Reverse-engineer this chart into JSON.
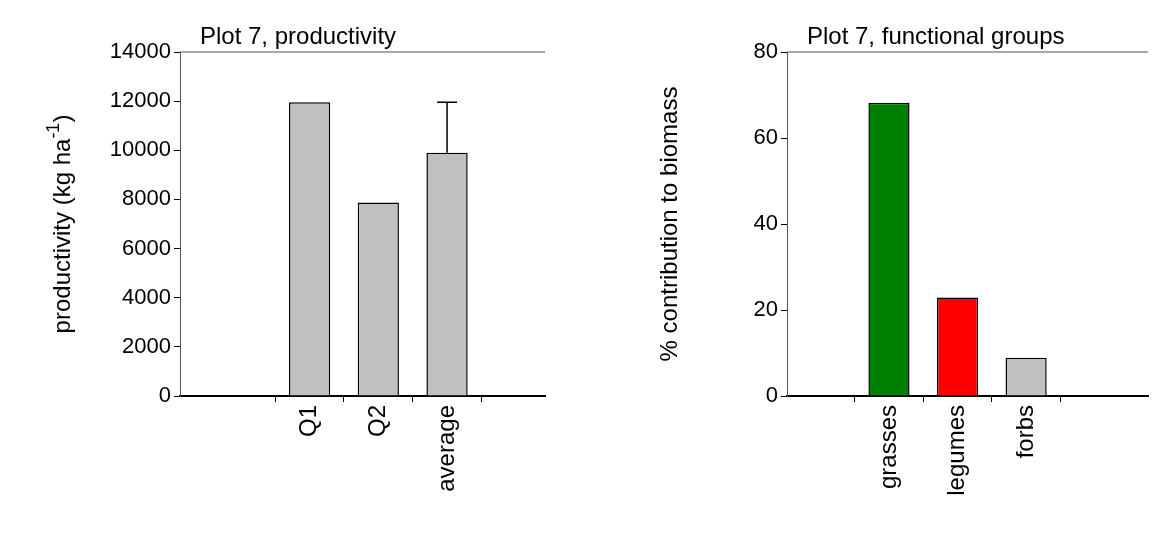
{
  "chart_data": [
    {
      "type": "bar",
      "title": "Plot 7, productivity",
      "ylabel": "productivity (kg ha$^{-1}$)",
      "categories": [
        "Q1",
        "Q2",
        "average"
      ],
      "values": [
        11950,
        7880,
        9900
      ],
      "errors": [
        null,
        null,
        [
          9900,
          11950
        ]
      ],
      "color": "#c0c0c0",
      "ylim": [
        0,
        14000
      ],
      "yticks": [
        0,
        2000,
        4000,
        6000,
        8000,
        10000,
        12000,
        14000
      ]
    },
    {
      "type": "bar",
      "title": "Plot 7, functional groups",
      "ylabel": "% contribution to biomass",
      "categories": [
        "grasses",
        "legumes",
        "forbs"
      ],
      "values": [
        68.2,
        22.9,
        8.9
      ],
      "colors": [
        "#008000",
        "#ff0000",
        "#c0c0c0"
      ],
      "ylim": [
        0,
        80
      ],
      "yticks": [
        0,
        20,
        40,
        60,
        80
      ]
    }
  ]
}
